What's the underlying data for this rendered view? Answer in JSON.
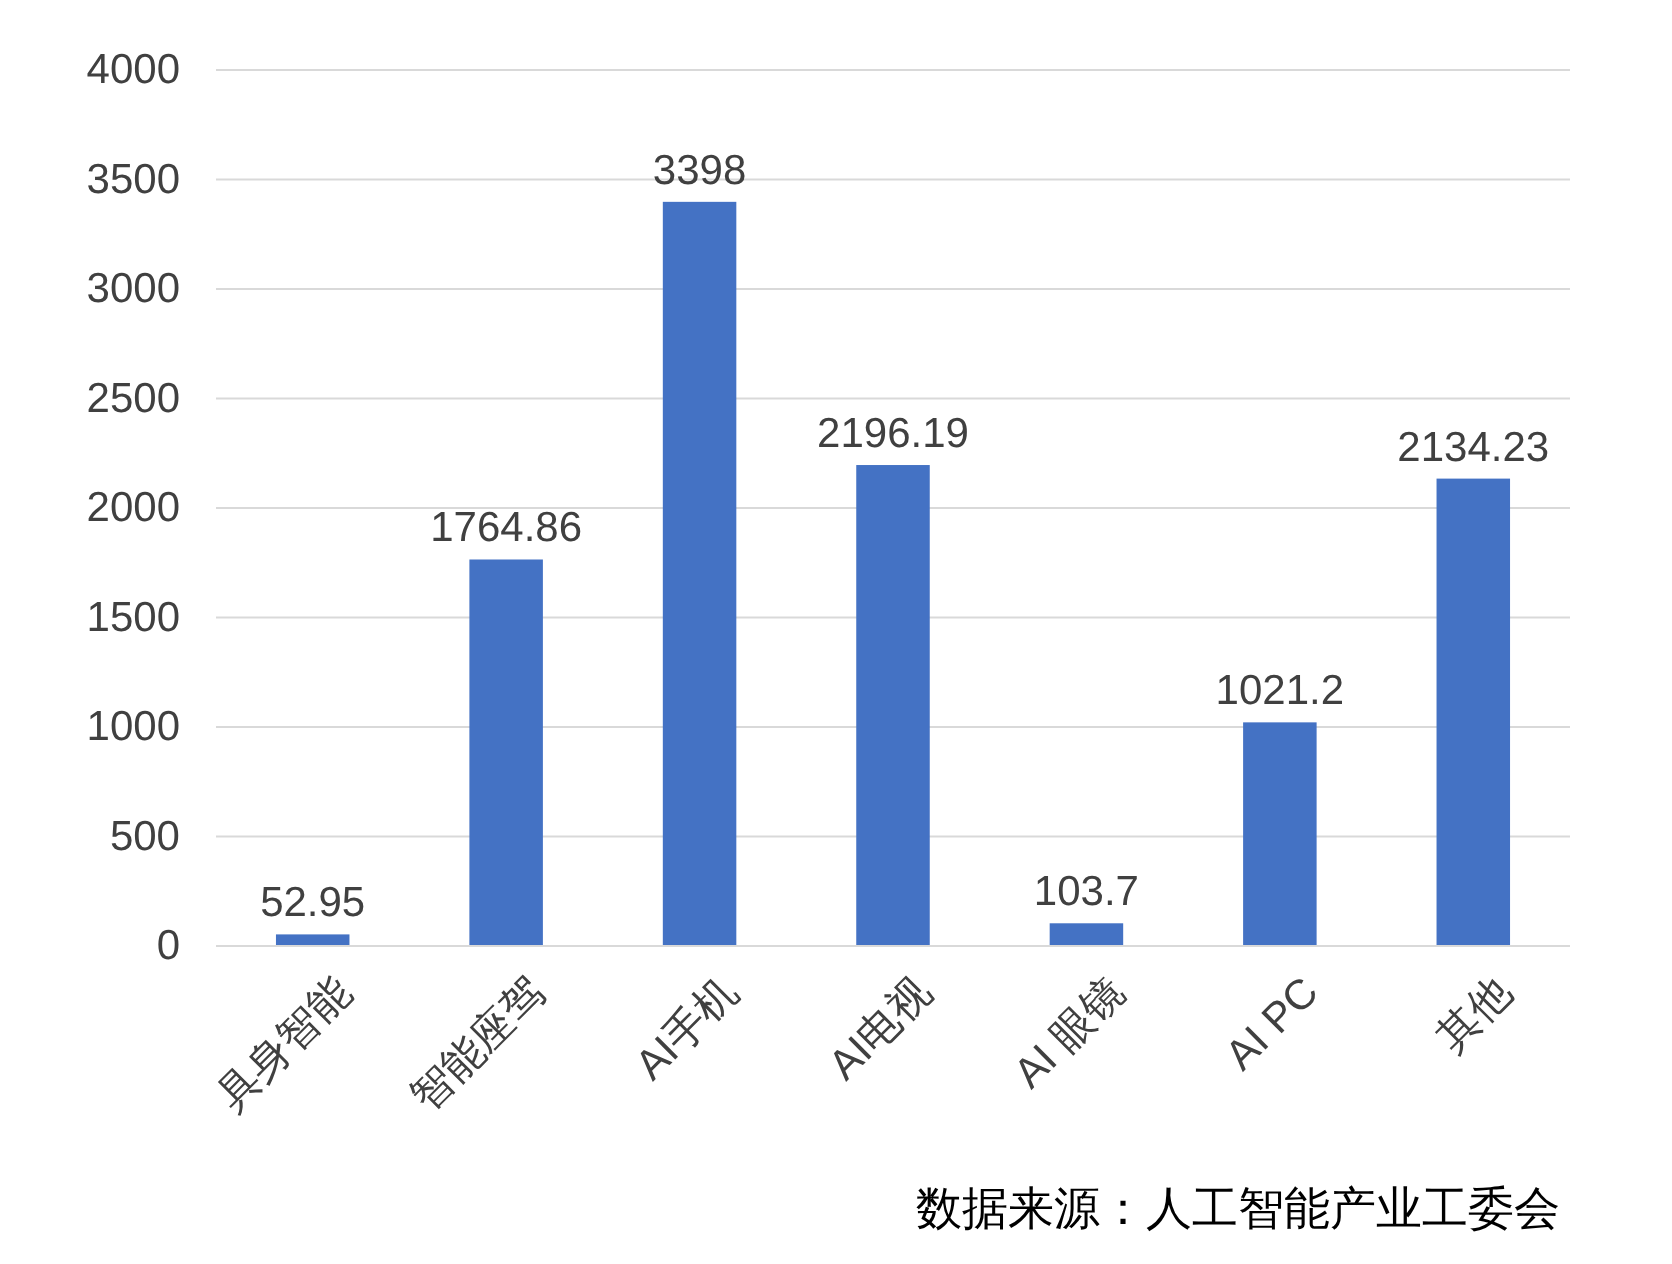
{
  "chart_data": {
    "type": "bar",
    "categories": [
      "具身智能",
      "智能座驾",
      "AI手机",
      "AI电视",
      "AI 眼镜",
      "AI PC",
      "其他"
    ],
    "values": [
      52.95,
      1764.86,
      3398,
      2196.19,
      103.7,
      1021.2,
      2134.23
    ],
    "color": "#4472c4",
    "data_labels": true,
    "grid": "y",
    "ylim": [
      0,
      4000
    ],
    "yticks": [
      0,
      500,
      1000,
      1500,
      2000,
      2500,
      3000,
      3500,
      4000
    ],
    "annotations": [
      "数据来源：人工智能产业工委会"
    ]
  }
}
